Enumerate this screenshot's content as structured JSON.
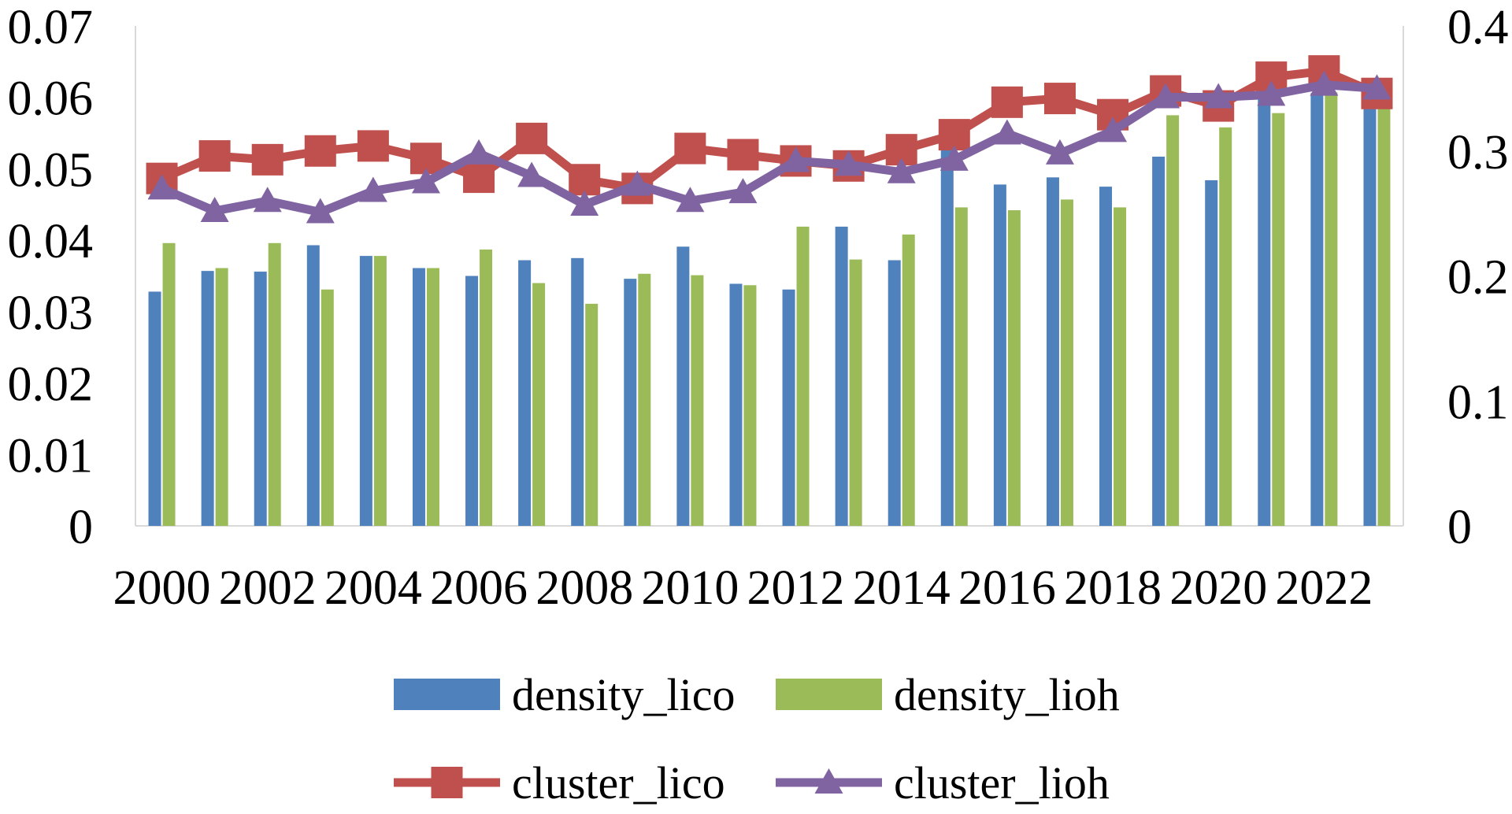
{
  "chart_data": {
    "type": "bar",
    "title": "",
    "x": [
      2000,
      2001,
      2002,
      2003,
      2004,
      2005,
      2006,
      2007,
      2008,
      2009,
      2010,
      2011,
      2012,
      2013,
      2014,
      2015,
      2016,
      2017,
      2018,
      2019,
      2020,
      2021,
      2022,
      2023
    ],
    "x_tick_labels": [
      "2000",
      "2002",
      "2004",
      "2006",
      "2008",
      "2010",
      "2012",
      "2014",
      "2016",
      "2018",
      "2020",
      "2022"
    ],
    "y_left": {
      "ylim": [
        0,
        0.07
      ],
      "ticks": [
        "0",
        "0.01",
        "0.02",
        "0.03",
        "0.04",
        "0.05",
        "0.06",
        "0.07"
      ]
    },
    "y_right": {
      "ylim": [
        0,
        0.4
      ],
      "ticks": [
        "0",
        "0.1",
        "0.2",
        "0.3",
        "0.4"
      ]
    },
    "grid": false,
    "legend_position": "bottom",
    "series": [
      {
        "name": "density_lico",
        "type": "bar",
        "axis": "left",
        "color": "#4f81bd",
        "values": [
          0.0328,
          0.0357,
          0.0356,
          0.0393,
          0.0378,
          0.0361,
          0.035,
          0.0372,
          0.0375,
          0.0346,
          0.0391,
          0.0339,
          0.0331,
          0.0419,
          0.0372,
          0.0531,
          0.0478,
          0.0488,
          0.0475,
          0.0517,
          0.0484,
          0.0598,
          0.0606,
          0.0626
        ]
      },
      {
        "name": "density_lioh",
        "type": "bar",
        "axis": "left",
        "color": "#9bbb59",
        "values": [
          0.0396,
          0.0361,
          0.0396,
          0.0331,
          0.0378,
          0.0361,
          0.0387,
          0.034,
          0.0311,
          0.0353,
          0.0351,
          0.0337,
          0.0419,
          0.0373,
          0.0408,
          0.0446,
          0.0442,
          0.0457,
          0.0446,
          0.0575,
          0.0558,
          0.0578,
          0.0607,
          0.0597
        ]
      },
      {
        "name": "cluster_lico",
        "type": "line",
        "axis": "right",
        "color": "#c0504d",
        "marker": "square",
        "values": [
          0.278,
          0.296,
          0.293,
          0.3,
          0.304,
          0.294,
          0.279,
          0.31,
          0.277,
          0.27,
          0.302,
          0.297,
          0.292,
          0.288,
          0.301,
          0.313,
          0.339,
          0.342,
          0.329,
          0.348,
          0.336,
          0.359,
          0.364,
          0.346
        ]
      },
      {
        "name": "cluster_lioh",
        "type": "line",
        "axis": "right",
        "color": "#8064a2",
        "marker": "triangle",
        "values": [
          0.27,
          0.252,
          0.26,
          0.251,
          0.268,
          0.275,
          0.298,
          0.28,
          0.257,
          0.273,
          0.26,
          0.267,
          0.292,
          0.289,
          0.283,
          0.293,
          0.314,
          0.298,
          0.316,
          0.343,
          0.343,
          0.345,
          0.353,
          0.35
        ]
      }
    ]
  }
}
